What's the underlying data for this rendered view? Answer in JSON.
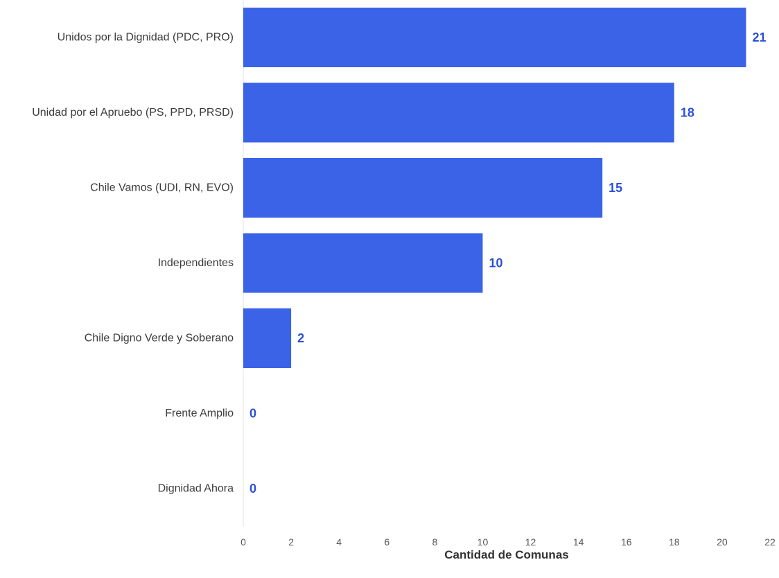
{
  "colors": {
    "bar": "#3b63e8",
    "value_label": "#2a4fd6",
    "axis_line": "#e3e3e3"
  },
  "chart_data": {
    "type": "bar",
    "orientation": "horizontal",
    "categories": [
      "Unidos por la Dignidad (PDC, PRO)",
      "Unidad por el Apruebo (PS, PPD, PRSD)",
      "Chile Vamos (UDI, RN, EVO)",
      "Independientes",
      "Chile Digno Verde y Soberano",
      "Frente Amplio",
      "Dignidad Ahora"
    ],
    "values": [
      21,
      18,
      15,
      10,
      2,
      0,
      0
    ],
    "xlabel": "Cantidad de Comunas",
    "xlim": [
      0,
      22
    ],
    "xticks": [
      0,
      2,
      4,
      6,
      8,
      10,
      12,
      14,
      16,
      18,
      20,
      22
    ],
    "grid": false,
    "data_labels": true
  }
}
